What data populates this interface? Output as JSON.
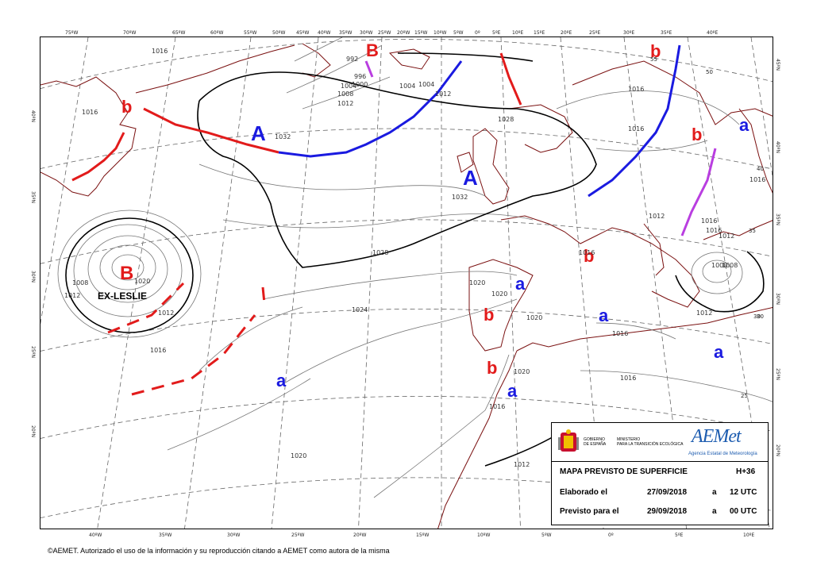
{
  "ticks_top": [
    "75ºW",
    "70ºW",
    "65ºW",
    "60ºW",
    "55ºW",
    "50ºW",
    "45ºW",
    "40ºW",
    "35ºW",
    "30ºW",
    "25ºW",
    "20ºW",
    "15ºW",
    "10ºW",
    "5ºW",
    "0º",
    "5ºE",
    "10ºE",
    "15ºE",
    "20ºE",
    "25ºE",
    "30ºE",
    "35ºE",
    "40ºE"
  ],
  "ticks_bottom": [
    "40ºW",
    "35ºW",
    "30ºW",
    "25ºW",
    "20ºW",
    "15ºW",
    "10ºW",
    "5ºW",
    "0º",
    "5ºE",
    "10ºE"
  ],
  "ticks_left": [
    "40ºN",
    "35ºN",
    "30ºN",
    "25ºN",
    "20ºN"
  ],
  "ticks_right": [
    "45ºN",
    "40ºN",
    "35ºN",
    "30ºN",
    "25ºN",
    "20ºN"
  ],
  "pressure_labels": [
    "1016",
    "1016",
    "1032",
    "1028",
    "1032",
    "1028",
    "1012",
    "992",
    "996",
    "1004",
    "1008",
    "1000",
    "1012",
    "1004",
    "1012",
    "1008",
    "1012",
    "1020",
    "1024",
    "1020",
    "1020",
    "1020",
    "1016",
    "1016",
    "1016",
    "1016",
    "1012",
    "1012",
    "1016",
    "1000",
    "1008",
    "1012",
    "1016",
    "1020",
    "1012",
    "1020",
    "1016",
    "1004",
    "1016",
    "1016",
    "1016"
  ],
  "labels_red": [
    "B",
    "b",
    "B",
    "b",
    "b",
    "b",
    "b",
    "b"
  ],
  "labels_blue": [
    "A",
    "A",
    "a",
    "a",
    "a",
    "a",
    "a",
    "a"
  ],
  "storm_name": "EX-LESLIE",
  "map_numbers": [
    "55",
    "50",
    "35",
    "30",
    "25",
    "30",
    "40"
  ],
  "legend": {
    "gov_line1": "GOBIERNO",
    "gov_line2": "DE ESPAÑA",
    "ministry_line1": "MINISTERIO",
    "ministry_line2": "PARA LA TRANSICIÓN ECOLÓGICA",
    "aemet_logo": "AEMet",
    "aemet_sub": "Agencia Estatal de Meteorología",
    "title": "MAPA PREVISTO DE SUPERFICIE",
    "horizon": "H+36",
    "made_label": "Elaborado el",
    "made_date": "27/09/2018",
    "made_a": "a",
    "made_time": "12 UTC",
    "valid_label": "Previsto para el",
    "valid_date": "29/09/2018",
    "valid_a": "a",
    "valid_time": "00 UTC"
  },
  "footer": "©AEMET. Autorizado el uso de la información y su reproducción citando a AEMET como autora de la misma",
  "colors": {
    "red": "#e21b1b",
    "blue": "#1a1ae0",
    "purple": "#b93ee0",
    "coast": "#7a1010",
    "isobar": "#777777",
    "grid": "#555555"
  }
}
